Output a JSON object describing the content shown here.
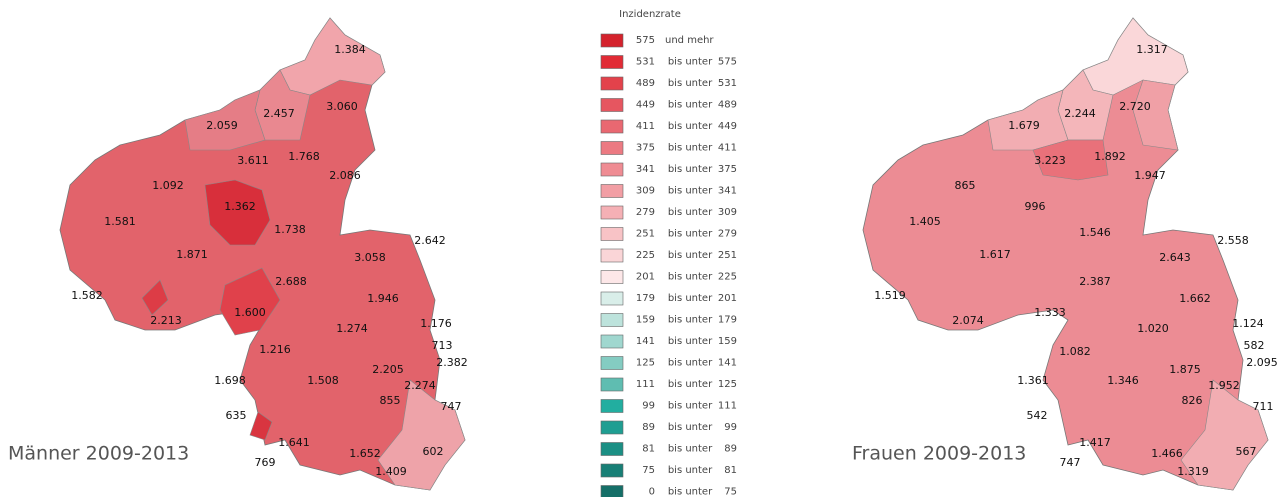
{
  "maps": [
    {
      "caption": "Männer 2009-2013",
      "labels": [
        "1.384",
        "2.457",
        "3.060",
        "2.059",
        "3.611",
        "1.768",
        "2.086",
        "1.092",
        "1.362",
        "1.581",
        "1.738",
        "2.642",
        "1.871",
        "3.058",
        "2.688",
        "1.946",
        "1.582",
        "2.213",
        "1.600",
        "1.274",
        "1.176",
        "713",
        "2.382",
        "1.216",
        "1.698",
        "1.508",
        "2.205",
        "2.274",
        "855",
        "747",
        "635",
        "1.641",
        "1.652",
        "602",
        "769",
        "1.409"
      ]
    },
    {
      "caption": "Frauen 2009-2013",
      "labels": [
        "1.317",
        "2.244",
        "2.720",
        "1.679",
        "3.223",
        "1.892",
        "1.947",
        "865",
        "996",
        "1.405",
        "1.546",
        "2.558",
        "1.617",
        "2.643",
        "2.387",
        "1.662",
        "1.519",
        "2.074",
        "1.333",
        "1.020",
        "1.124",
        "582",
        "2.095",
        "1.082",
        "1.361",
        "1.346",
        "1.875",
        "1.952",
        "826",
        "711",
        "542",
        "1.417",
        "1.466",
        "567",
        "747",
        "1.319"
      ]
    }
  ],
  "legend": {
    "title": "Inzidenzrate",
    "items": [
      {
        "low": "575",
        "text": "und mehr",
        "color": "#d4222c"
      },
      {
        "low": "531",
        "text": "bis unter",
        "high": "575",
        "color": "#e12b35"
      },
      {
        "low": "489",
        "text": "bis unter",
        "high": "531",
        "color": "#e3424b"
      },
      {
        "low": "449",
        "text": "bis unter",
        "high": "489",
        "color": "#e65660"
      },
      {
        "low": "411",
        "text": "bis unter",
        "high": "449",
        "color": "#e96871"
      },
      {
        "low": "375",
        "text": "bis unter",
        "high": "411",
        "color": "#ec7a82"
      },
      {
        "low": "341",
        "text": "bis unter",
        "high": "375",
        "color": "#ef8c93"
      },
      {
        "low": "309",
        "text": "bis unter",
        "high": "341",
        "color": "#f29ea4"
      },
      {
        "low": "279",
        "text": "bis unter",
        "high": "309",
        "color": "#f5b0b5"
      },
      {
        "low": "251",
        "text": "bis unter",
        "high": "279",
        "color": "#f8c3c6"
      },
      {
        "low": "225",
        "text": "bis unter",
        "high": "251",
        "color": "#fad5d7"
      },
      {
        "low": "201",
        "text": "bis unter",
        "high": "225",
        "color": "#fde7e8"
      },
      {
        "low": "179",
        "text": "bis unter",
        "high": "201",
        "color": "#d9eee9"
      },
      {
        "low": "159",
        "text": "bis unter",
        "high": "179",
        "color": "#bde3dc"
      },
      {
        "low": "141",
        "text": "bis unter",
        "high": "159",
        "color": "#a0d7cf"
      },
      {
        "low": "125",
        "text": "bis unter",
        "high": "141",
        "color": "#84ccc2"
      },
      {
        "low": "111",
        "text": "bis unter",
        "high": "125",
        "color": "#5fbdb1"
      },
      {
        "low": "99",
        "text": "bis unter",
        "high": "111",
        "color": "#22aea0"
      },
      {
        "low": "89",
        "text": "bis unter",
        "high": "99",
        "color": "#1f9e92"
      },
      {
        "low": "81",
        "text": "bis unter",
        "high": "89",
        "color": "#1b8f84"
      },
      {
        "low": "75",
        "text": "bis unter",
        "high": "81",
        "color": "#187f76"
      },
      {
        "low": "0",
        "text": "bis unter",
        "high": "75",
        "color": "#156f68"
      }
    ]
  }
}
